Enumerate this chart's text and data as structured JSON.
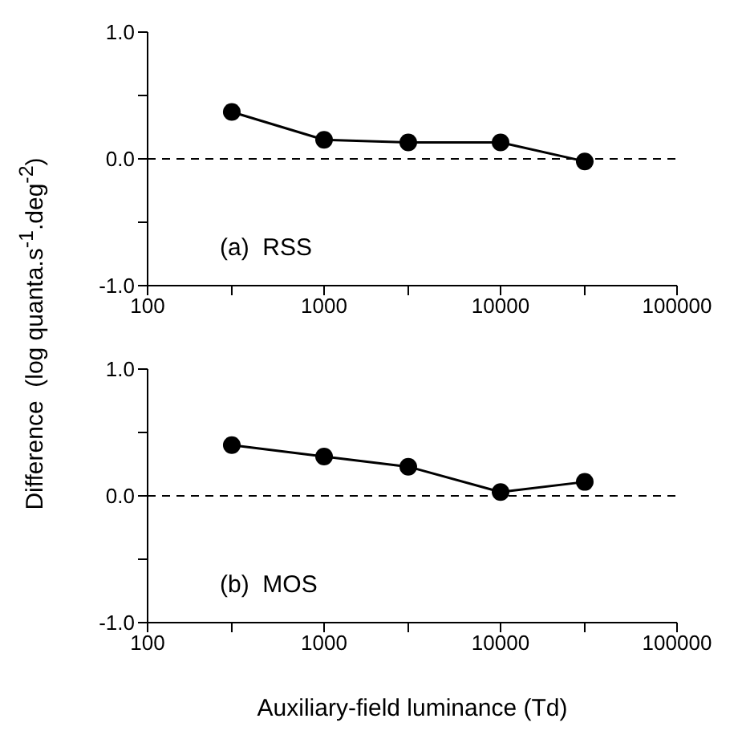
{
  "chart_data": [
    {
      "type": "line",
      "ylabel": "Difference  (log quanta.s$^{-1}$.deg$^{-2}$)",
      "annotations": [
        "(a)  RSS"
      ],
      "x": [
        300,
        1000,
        3000,
        10000,
        30000
      ],
      "log": "x",
      "marker": "circle",
      "line_style": "solid",
      "series": [
        {
          "color": "#000000",
          "values": [
            0.37,
            0.15,
            0.13,
            0.13,
            -0.02
          ]
        }
      ],
      "xlim": [
        100,
        100000
      ],
      "xticks": [
        100,
        {
          "value": 300,
          "label": null
        },
        1000,
        {
          "value": 3000,
          "label": null
        },
        10000,
        {
          "value": 30000,
          "label": null
        },
        100000
      ],
      "ylim": [
        -1.0,
        1.0
      ],
      "yticks": [
        {
          "value": -1.0,
          "label": "-1.0"
        },
        {
          "value": -0.5,
          "label": null
        },
        {
          "value": 0.0,
          "label": "0.0"
        },
        {
          "value": 0.5,
          "label": null
        },
        {
          "value": 1.0,
          "label": "1.0"
        }
      ],
      "ref_lines": [
        {
          "axis": "y",
          "value": 0,
          "line_style": "dashed",
          "color": "#000000"
        }
      ],
      "grid": false,
      "legend": false
    },
    {
      "type": "line",
      "xlabel": "Auxiliary-field luminance (Td)",
      "annotations": [
        "(b)  MOS"
      ],
      "x": [
        300,
        1000,
        3000,
        10000,
        30000
      ],
      "log": "x",
      "marker": "circle",
      "line_style": "solid",
      "series": [
        {
          "color": "#000000",
          "values": [
            0.4,
            0.31,
            0.23,
            0.03,
            0.11
          ]
        }
      ],
      "xlim": [
        100,
        100000
      ],
      "xticks": [
        100,
        {
          "value": 300,
          "label": null
        },
        1000,
        {
          "value": 3000,
          "label": null
        },
        10000,
        {
          "value": 30000,
          "label": null
        },
        100000
      ],
      "ylim": [
        -1.0,
        1.0
      ],
      "yticks": [
        {
          "value": -1.0,
          "label": "-1.0"
        },
        {
          "value": -0.5,
          "label": null
        },
        {
          "value": 0.0,
          "label": "0.0"
        },
        {
          "value": 0.5,
          "label": null
        },
        {
          "value": 1.0,
          "label": "1.0"
        }
      ],
      "ref_lines": [
        {
          "axis": "y",
          "value": 0,
          "line_style": "dashed",
          "color": "#000000"
        }
      ],
      "grid": false,
      "legend": false
    }
  ]
}
